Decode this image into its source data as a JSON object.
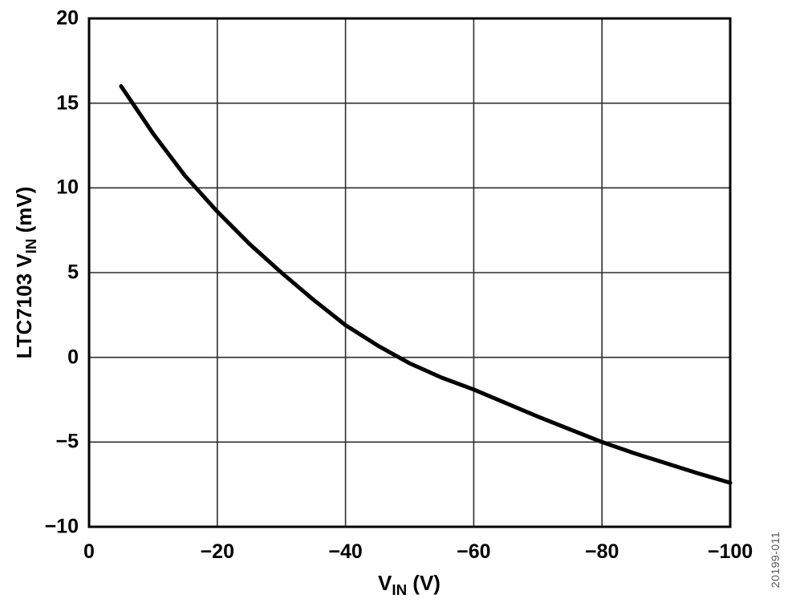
{
  "chart_data": {
    "type": "line",
    "title": "",
    "grid": true,
    "legend": "none",
    "x_axis": {
      "label": {
        "prefix": "V",
        "sub": "IN",
        "suffix": " (V)"
      },
      "range_left_to_right": [
        0,
        -100
      ],
      "tick_values": [
        0,
        -20,
        -40,
        -60,
        -80,
        -100
      ],
      "tick_labels": [
        "0",
        "−20",
        "−40",
        "−60",
        "−80",
        "−100"
      ]
    },
    "y_axis": {
      "label": {
        "prefix": "LTC7103 V",
        "sub": "IN",
        "suffix": " (mV)"
      },
      "range_bottom_to_top": [
        -10,
        20
      ],
      "tick_values": [
        20,
        15,
        10,
        5,
        0,
        -5,
        -10
      ],
      "tick_labels": [
        "20",
        "15",
        "10",
        "5",
        "0",
        "−5",
        "−10"
      ]
    },
    "series": [
      {
        "color": "#000000",
        "points": [
          [
            -5,
            16.0
          ],
          [
            -10,
            13.2
          ],
          [
            -15,
            10.7
          ],
          [
            -20,
            8.6
          ],
          [
            -25,
            6.7
          ],
          [
            -30,
            5.0
          ],
          [
            -35,
            3.4
          ],
          [
            -40,
            1.9
          ],
          [
            -45,
            0.7
          ],
          [
            -50,
            -0.35
          ],
          [
            -55,
            -1.2
          ],
          [
            -60,
            -1.9
          ],
          [
            -65,
            -2.7
          ],
          [
            -70,
            -3.5
          ],
          [
            -75,
            -4.25
          ],
          [
            -80,
            -5.0
          ],
          [
            -85,
            -5.65
          ],
          [
            -90,
            -6.25
          ],
          [
            -95,
            -6.85
          ],
          [
            -100,
            -7.4
          ]
        ]
      }
    ]
  },
  "watermark": "20199-011",
  "colors": {
    "curve": "#000000",
    "grid": "#2e2e2e",
    "border": "#000000",
    "watermark": "#58595b"
  }
}
